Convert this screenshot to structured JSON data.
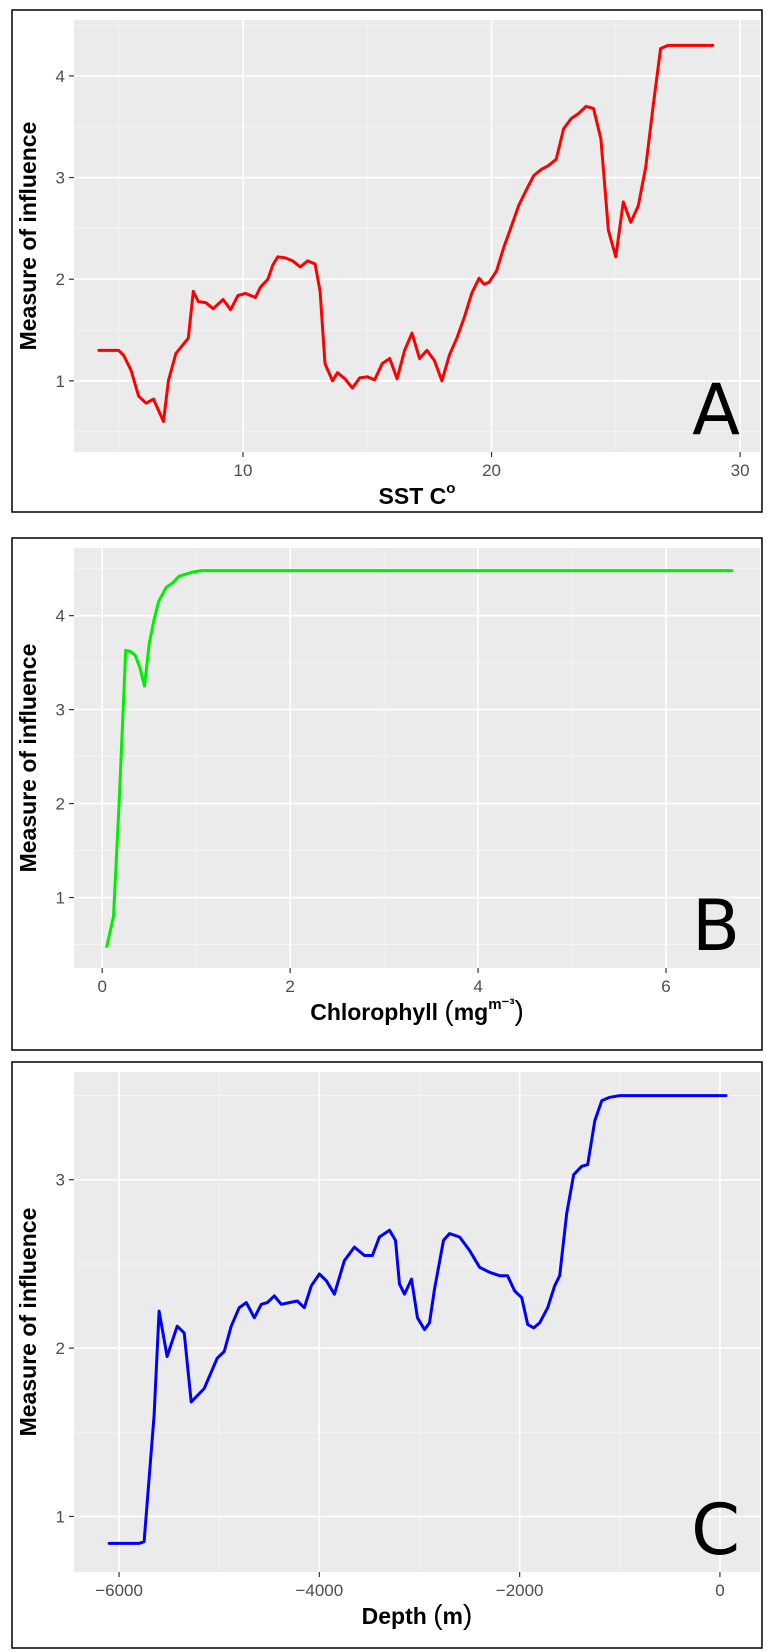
{
  "chart_data": [
    {
      "type": "line",
      "panel_label": "A",
      "color": "#ff0000",
      "xlabel": "SST C",
      "xlabel_sup": "o",
      "ylabel": "Measure of influence",
      "xlim": [
        3.2,
        30.8
      ],
      "ylim": [
        0.3,
        4.55
      ],
      "xticks": [
        10,
        20,
        30
      ],
      "xtick_labels": [
        "10",
        "20",
        "30"
      ],
      "yticks": [
        1,
        2,
        3,
        4
      ],
      "ytick_labels": [
        "1",
        "2",
        "3",
        "4"
      ],
      "grid": true,
      "x": [
        4.2,
        4.6,
        5.0,
        5.2,
        5.5,
        5.8,
        6.1,
        6.4,
        6.8,
        7.0,
        7.3,
        7.8,
        8.0,
        8.2,
        8.5,
        8.8,
        9.2,
        9.5,
        9.8,
        10.1,
        10.5,
        10.7,
        11.0,
        11.2,
        11.4,
        11.7,
        12.0,
        12.3,
        12.6,
        12.9,
        13.1,
        13.3,
        13.6,
        13.8,
        14.1,
        14.4,
        14.7,
        15.0,
        15.3,
        15.6,
        15.9,
        16.2,
        16.5,
        16.8,
        17.1,
        17.4,
        17.7,
        18.0,
        18.3,
        18.6,
        18.9,
        19.2,
        19.5,
        19.7,
        19.9,
        20.2,
        20.5,
        20.8,
        21.1,
        21.4,
        21.7,
        22.0,
        22.3,
        22.6,
        22.9,
        23.2,
        23.5,
        23.8,
        24.1,
        24.4,
        24.7,
        25.0,
        25.3,
        25.6,
        25.9,
        26.2,
        26.5,
        26.8,
        27.1,
        27.4,
        27.7,
        28.0,
        28.3,
        28.6,
        28.9
      ],
      "y": [
        1.3,
        1.3,
        1.3,
        1.25,
        1.1,
        0.85,
        0.78,
        0.82,
        0.6,
        1.0,
        1.27,
        1.42,
        1.88,
        1.78,
        1.77,
        1.71,
        1.8,
        1.7,
        1.84,
        1.86,
        1.82,
        1.92,
        2.0,
        2.14,
        2.22,
        2.21,
        2.18,
        2.12,
        2.18,
        2.15,
        1.88,
        1.17,
        1.0,
        1.08,
        1.02,
        0.93,
        1.03,
        1.04,
        1.01,
        1.17,
        1.22,
        1.02,
        1.3,
        1.47,
        1.22,
        1.3,
        1.2,
        1.0,
        1.25,
        1.42,
        1.62,
        1.86,
        2.01,
        1.95,
        1.97,
        2.08,
        2.32,
        2.52,
        2.73,
        2.88,
        3.02,
        3.08,
        3.12,
        3.18,
        3.48,
        3.58,
        3.63,
        3.7,
        3.68,
        3.38,
        2.48,
        2.22,
        2.76,
        2.56,
        2.72,
        3.1,
        3.7,
        4.27,
        4.3,
        4.3,
        4.3,
        4.3,
        4.3,
        4.3,
        4.3
      ]
    },
    {
      "type": "line",
      "panel_label": "B",
      "color": "#00ee00",
      "xlabel": "Chlorophyll",
      "xlabel_unit": "mg",
      "xlabel_sup": "m⁻³",
      "ylabel": "Measure of influence",
      "xlim": [
        -0.3,
        7.0
      ],
      "ylim": [
        0.25,
        4.72
      ],
      "xticks": [
        0,
        2,
        4,
        6
      ],
      "xtick_labels": [
        "0",
        "2",
        "4",
        "6"
      ],
      "yticks": [
        1,
        2,
        3,
        4
      ],
      "ytick_labels": [
        "1",
        "2",
        "3",
        "4"
      ],
      "grid": true,
      "x": [
        0.05,
        0.12,
        0.18,
        0.25,
        0.3,
        0.35,
        0.4,
        0.45,
        0.5,
        0.55,
        0.6,
        0.68,
        0.75,
        0.82,
        0.95,
        1.05,
        1.5,
        2.5,
        4.0,
        5.5,
        6.7
      ],
      "y": [
        0.48,
        0.8,
        2.0,
        3.63,
        3.62,
        3.58,
        3.45,
        3.25,
        3.7,
        3.95,
        4.15,
        4.3,
        4.35,
        4.42,
        4.46,
        4.48,
        4.48,
        4.48,
        4.48,
        4.48,
        4.48
      ]
    },
    {
      "type": "line",
      "panel_label": "C",
      "color": "#0000ff",
      "xlabel": "Depth",
      "xlabel_unit": "m",
      "ylabel": "Measure of influence",
      "xlim": [
        -6450,
        400
      ],
      "ylim": [
        0.67,
        3.64
      ],
      "xticks": [
        -6000,
        -4000,
        -2000,
        0
      ],
      "xtick_labels": [
        "−6000",
        "−4000",
        "−2000",
        "0"
      ],
      "yticks": [
        1,
        2,
        3
      ],
      "ytick_labels": [
        "1",
        "2",
        "3"
      ],
      "grid": true,
      "x": [
        -6100,
        -5950,
        -5800,
        -5750,
        -5650,
        -5600,
        -5520,
        -5420,
        -5350,
        -5280,
        -5150,
        -5020,
        -4950,
        -4880,
        -4800,
        -4730,
        -4650,
        -4580,
        -4520,
        -4450,
        -4380,
        -4300,
        -4220,
        -4150,
        -4080,
        -4000,
        -3930,
        -3850,
        -3750,
        -3650,
        -3550,
        -3470,
        -3400,
        -3300,
        -3240,
        -3200,
        -3150,
        -3080,
        -3020,
        -2950,
        -2900,
        -2850,
        -2760,
        -2700,
        -2600,
        -2500,
        -2400,
        -2300,
        -2200,
        -2120,
        -2050,
        -1980,
        -1920,
        -1860,
        -1800,
        -1720,
        -1650,
        -1600,
        -1530,
        -1460,
        -1380,
        -1320,
        -1250,
        -1180,
        -1100,
        -1000,
        -500,
        0,
        60
      ],
      "y": [
        0.84,
        0.84,
        0.84,
        0.85,
        1.6,
        2.22,
        1.95,
        2.13,
        2.09,
        1.68,
        1.76,
        1.94,
        1.98,
        2.13,
        2.24,
        2.27,
        2.18,
        2.26,
        2.27,
        2.31,
        2.26,
        2.27,
        2.28,
        2.24,
        2.37,
        2.44,
        2.4,
        2.32,
        2.52,
        2.6,
        2.55,
        2.55,
        2.66,
        2.7,
        2.64,
        2.38,
        2.32,
        2.41,
        2.18,
        2.11,
        2.15,
        2.35,
        2.64,
        2.68,
        2.66,
        2.58,
        2.48,
        2.45,
        2.43,
        2.43,
        2.34,
        2.3,
        2.14,
        2.12,
        2.15,
        2.24,
        2.37,
        2.43,
        2.8,
        3.03,
        3.08,
        3.09,
        3.35,
        3.47,
        3.49,
        3.5,
        3.5,
        3.5,
        3.5
      ]
    }
  ]
}
